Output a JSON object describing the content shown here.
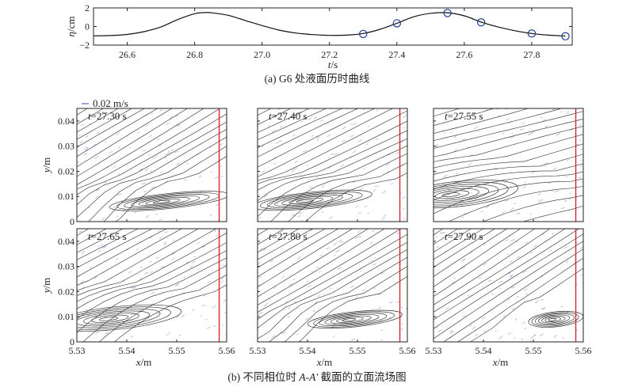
{
  "chart_data": [
    {
      "type": "line",
      "panel": "a",
      "caption": "(a) G6 处液面历时曲线",
      "xlabel": "t/s",
      "ylabel": "η/cm",
      "xlim": [
        26.5,
        27.92
      ],
      "ylim": [
        -2,
        2
      ],
      "xticks": [
        26.6,
        26.8,
        27.0,
        27.2,
        27.4,
        27.6,
        27.8
      ],
      "yticks": [
        -2,
        0,
        2
      ],
      "series": [
        {
          "x": [
            26.5,
            26.55,
            26.6,
            26.65,
            26.7,
            26.75,
            26.8,
            26.83,
            26.85,
            26.9,
            26.95,
            27.0,
            27.05,
            27.1,
            27.15,
            27.2,
            27.25,
            27.3,
            27.35,
            27.4,
            27.45,
            27.5,
            27.55,
            27.6,
            27.65,
            27.7,
            27.75,
            27.8,
            27.85,
            27.9
          ],
          "y": [
            -1.0,
            -0.97,
            -0.85,
            -0.55,
            -0.05,
            0.75,
            1.38,
            1.5,
            1.48,
            1.2,
            0.65,
            0.1,
            -0.38,
            -0.7,
            -0.87,
            -0.95,
            -0.93,
            -0.75,
            -0.3,
            0.35,
            1.05,
            1.42,
            1.48,
            1.15,
            0.48,
            -0.05,
            -0.45,
            -0.75,
            -0.93,
            -1.02
          ]
        }
      ],
      "markers": {
        "x": [
          27.3,
          27.4,
          27.55,
          27.65,
          27.8,
          27.9
        ],
        "y": [
          -0.8,
          0.35,
          1.45,
          0.45,
          -0.75,
          -1.05
        ],
        "style": "open-circle",
        "color": "#1f3f9c"
      }
    },
    {
      "type": "streamline",
      "panel": "b",
      "caption": "(b) 不同相位时 A-A′ 截面的立面流场图",
      "xlabel": "x/m",
      "ylabel": "y/m",
      "xlim": [
        5.53,
        5.56
      ],
      "ylim": [
        0,
        0.045
      ],
      "xticks": [
        5.53,
        5.54,
        5.55,
        5.56
      ],
      "yticks": [
        0,
        0.01,
        0.02,
        0.03,
        0.04
      ],
      "legend": {
        "label": "0.02 m/s",
        "color": "#6a7fd0"
      },
      "wall_x": 5.5585,
      "wall_color": "#d9232e",
      "panels": [
        {
          "time": "t=27.30 s",
          "vortex": [
            5.5485,
            0.0082
          ],
          "extent": [
            0.012,
            0.003
          ],
          "slope": 0.55
        },
        {
          "time": "t=27.40 s",
          "vortex": [
            5.541,
            0.0085
          ],
          "extent": [
            0.012,
            0.0032
          ],
          "slope": 0.45
        },
        {
          "time": "t=27.55 s",
          "vortex": [
            5.535,
            0.011
          ],
          "extent": [
            0.012,
            0.005
          ],
          "slope": 0.25
        },
        {
          "time": "t=27.65 s",
          "vortex": [
            5.538,
            0.0095
          ],
          "extent": [
            0.013,
            0.0045
          ],
          "slope": 0.5
        },
        {
          "time": "t=27.80 s",
          "vortex": [
            5.5495,
            0.009
          ],
          "extent": [
            0.0095,
            0.003
          ],
          "slope": 0.55
        },
        {
          "time": "t=27.90 s",
          "vortex": [
            5.5545,
            0.009
          ],
          "extent": [
            0.0055,
            0.003
          ],
          "slope": 0.6
        }
      ]
    }
  ],
  "colors": {
    "axis": "#222222",
    "curve": "#111111",
    "marker": "#1f3f9c",
    "streamline": "#333333",
    "vector": "#7e8fd6",
    "wall": "#d9232e"
  }
}
